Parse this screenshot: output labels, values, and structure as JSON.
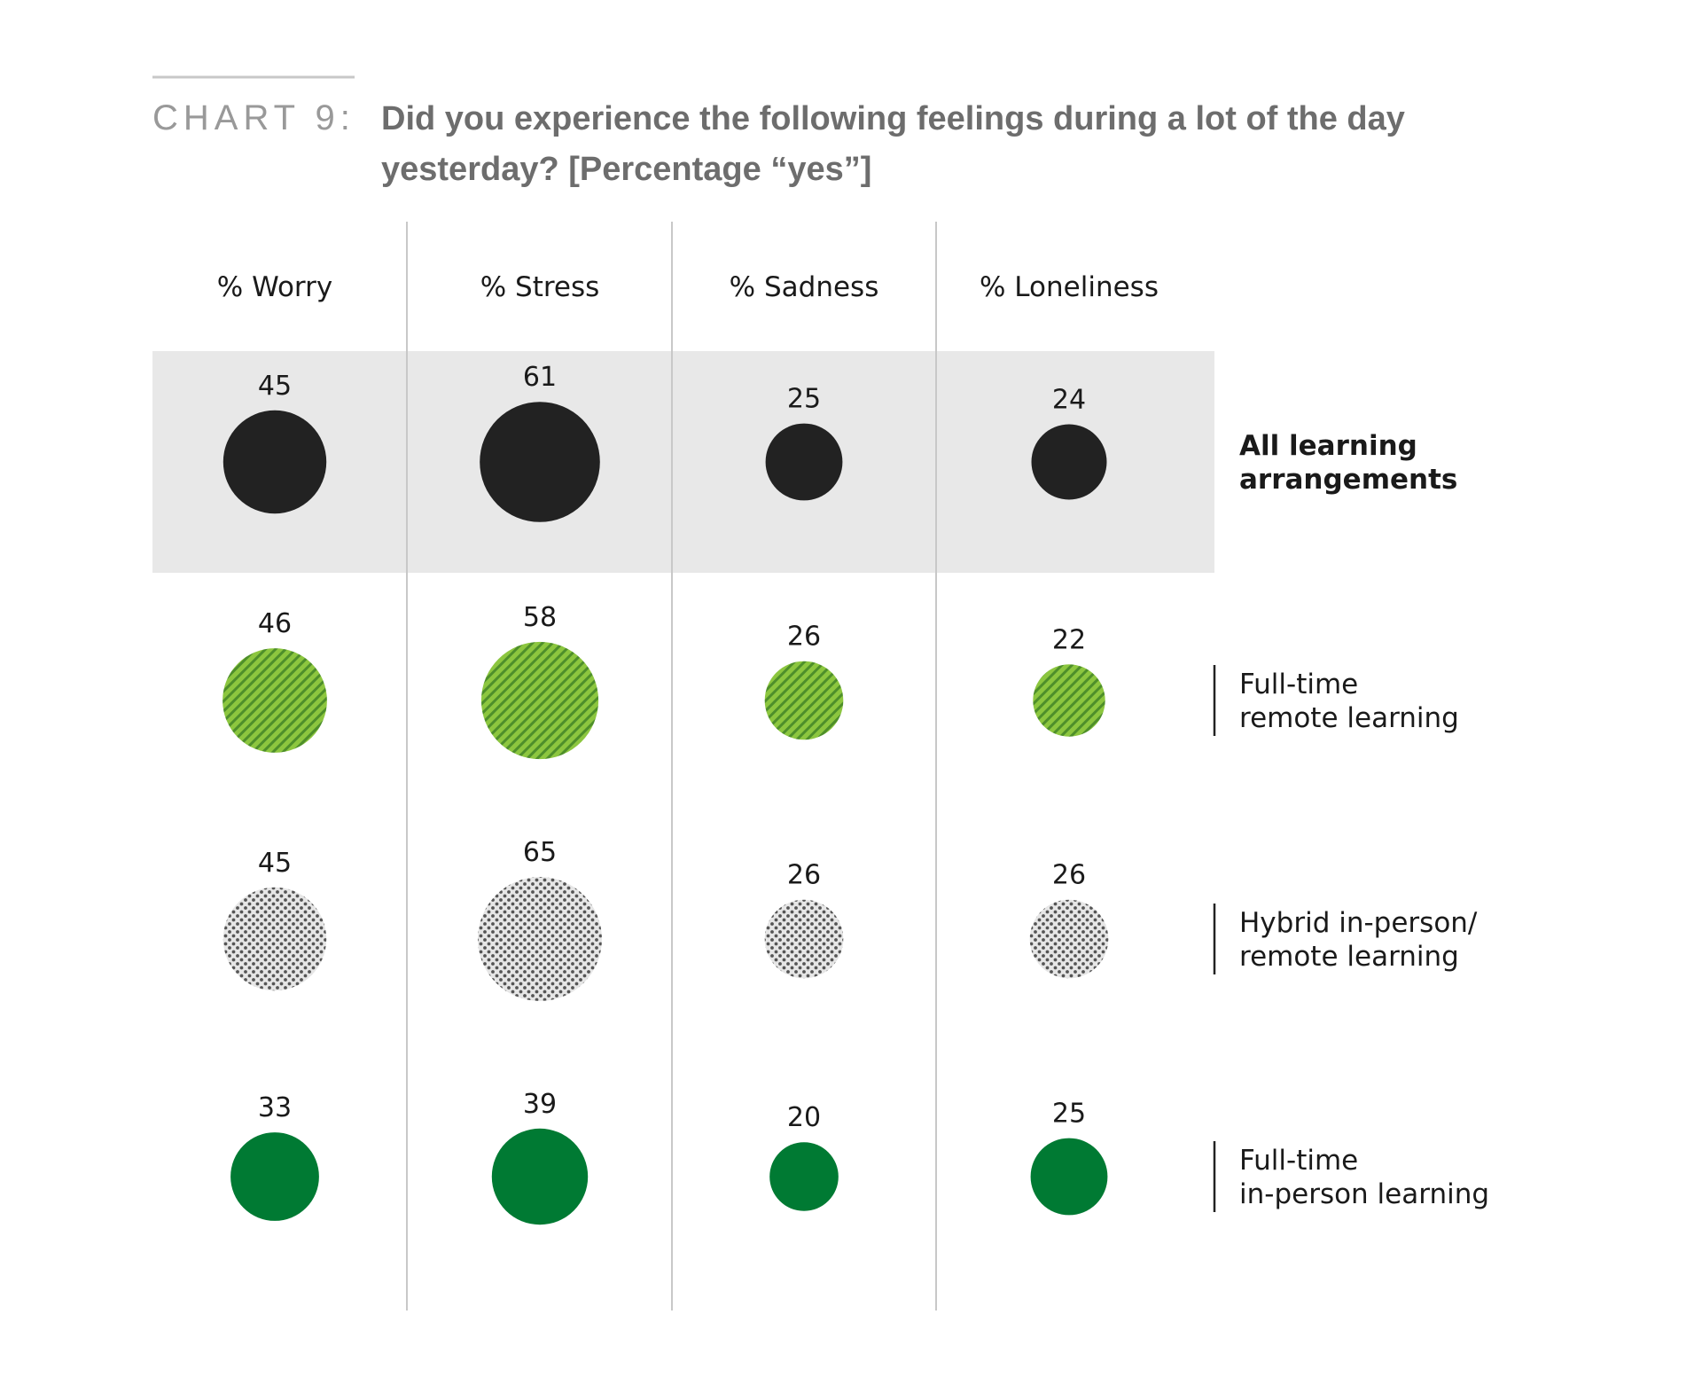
{
  "header": {
    "chart_label": "CHART 9:",
    "title_line1": "Did you experience the following feelings during a lot of the day",
    "title_line2": "yesterday? [Percentage “yes”]"
  },
  "colors": {
    "all": "#222222",
    "remote_base": "#8cc63f",
    "remote_stripe": "#4e8f2a",
    "hybrid_base": "#e6e6e6",
    "hybrid_dot": "#555555",
    "inperson": "#007a33",
    "band": "#e8e8e8",
    "divider": "#c8c8c8"
  },
  "chart_data": {
    "type": "bubble-grid",
    "title": "Did you experience the following feelings during a lot of the day yesterday? [Percentage “yes”]",
    "categories": [
      "% Worry",
      "% Stress",
      "% Sadness",
      "% Loneliness"
    ],
    "series": [
      {
        "key": "all",
        "name_lines": [
          "All learning",
          "arrangements"
        ],
        "values": [
          45,
          61,
          25,
          24
        ]
      },
      {
        "key": "remote",
        "name_lines": [
          "Full-time",
          "remote learning"
        ],
        "values": [
          46,
          58,
          26,
          22
        ]
      },
      {
        "key": "hybrid",
        "name_lines": [
          "Hybrid in-person/",
          "remote learning"
        ],
        "values": [
          45,
          65,
          26,
          26
        ]
      },
      {
        "key": "inperson",
        "name_lines": [
          "Full-time",
          "in-person learning"
        ],
        "values": [
          33,
          39,
          20,
          25
        ]
      }
    ]
  }
}
